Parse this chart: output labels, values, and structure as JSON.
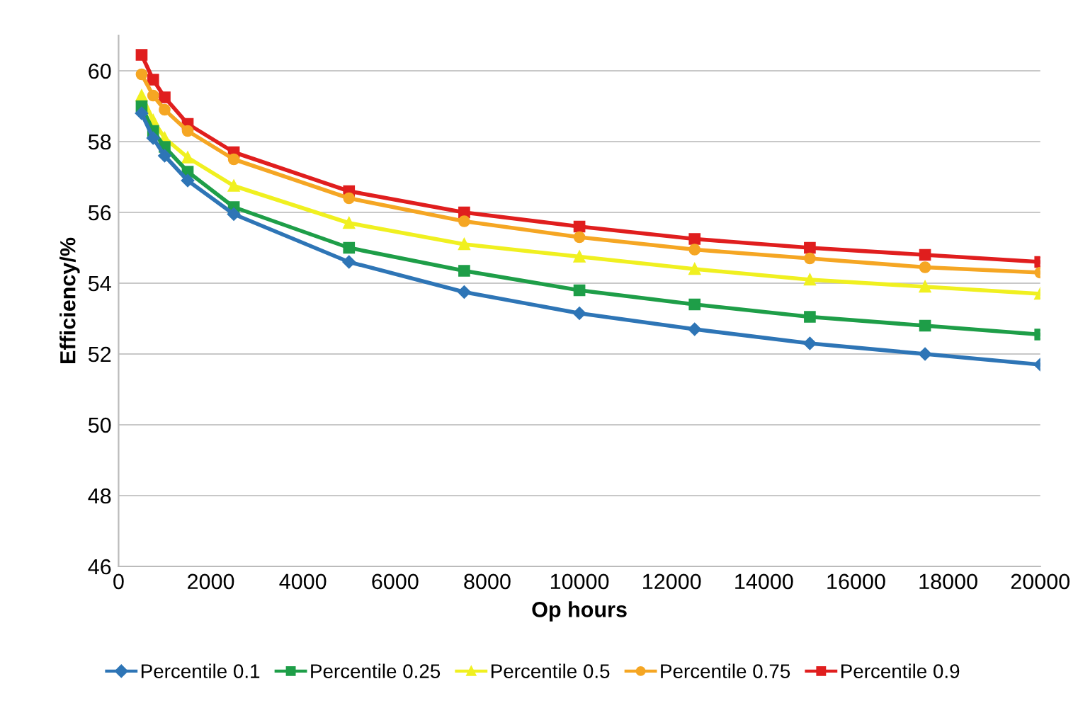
{
  "chart_data": {
    "type": "line",
    "xlabel": "Op hours",
    "ylabel": "Efficiency/%",
    "x": [
      500,
      750,
      1000,
      1500,
      2500,
      5000,
      7500,
      10000,
      12500,
      15000,
      17500,
      20000
    ],
    "series": [
      {
        "name": "Percentile 0.1",
        "color": "#2e75b6",
        "marker": "diamond",
        "values": [
          58.8,
          58.1,
          57.6,
          56.9,
          55.95,
          54.6,
          53.75,
          53.15,
          52.7,
          52.3,
          52.0,
          51.7
        ]
      },
      {
        "name": "Percentile 0.25",
        "color": "#1e9e48",
        "marker": "square",
        "values": [
          59.0,
          58.3,
          57.85,
          57.15,
          56.15,
          55.0,
          54.35,
          53.8,
          53.4,
          53.05,
          52.8,
          52.55
        ]
      },
      {
        "name": "Percentile 0.5",
        "color": "#f0f020",
        "marker": "triangle",
        "values": [
          59.3,
          58.6,
          58.1,
          57.55,
          56.75,
          55.7,
          55.1,
          54.75,
          54.4,
          54.1,
          53.9,
          53.7
        ]
      },
      {
        "name": "Percentile 0.75",
        "color": "#f5a623",
        "marker": "circle",
        "values": [
          59.9,
          59.3,
          58.9,
          58.3,
          57.5,
          56.4,
          55.75,
          55.3,
          54.95,
          54.7,
          54.45,
          54.3
        ]
      },
      {
        "name": "Percentile 0.9",
        "color": "#e01e1e",
        "marker": "square",
        "values": [
          60.45,
          59.75,
          59.25,
          58.5,
          57.7,
          56.6,
          56.0,
          55.6,
          55.25,
          55.0,
          54.8,
          54.6
        ]
      }
    ],
    "xlim": [
      0,
      20000
    ],
    "xticks": [
      0,
      2000,
      4000,
      6000,
      8000,
      10000,
      12000,
      14000,
      16000,
      18000,
      20000
    ],
    "ylim": [
      46,
      61
    ],
    "yticks": [
      46,
      48,
      50,
      52,
      54,
      56,
      58,
      60
    ],
    "grid": "y",
    "legend": "bottom",
    "line_style": "solid"
  }
}
